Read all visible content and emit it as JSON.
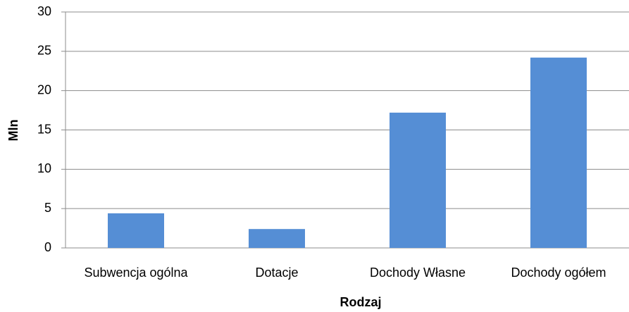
{
  "chart_data": {
    "type": "bar",
    "xlabel": "Rodzaj",
    "ylabel": "Mln",
    "categories": [
      "Subwencja ogólna",
      "Dotacje",
      "Dochody Własne",
      "Dochody ogółem"
    ],
    "values": [
      4.4,
      2.4,
      17.2,
      24.2
    ],
    "color": "#558ed5",
    "ylim": [
      0,
      30
    ],
    "yticks": [
      0,
      5,
      10,
      15,
      20,
      25,
      30
    ],
    "grid": true
  }
}
